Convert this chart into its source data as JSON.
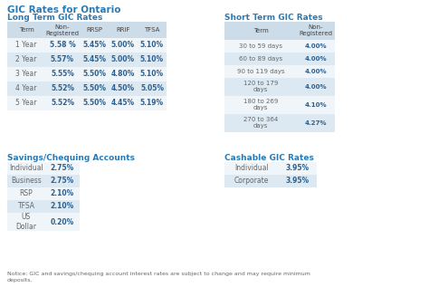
{
  "title": "GIC Rates for Ontario",
  "background_color": "#f5f5f5",
  "section_title_color": "#2a7ab5",
  "table_header_color": "#ccdce9",
  "table_row_alt_color": "#dce9f2",
  "table_row_color": "#f0f5f9",
  "table_value_color": "#2a6090",
  "table_text_color": "#666666",
  "notice_text": "Notice: GIC and savings/chequing account interest rates are subject to change and may require minimum\ndeposits.",
  "long_term_title": "Long Term GIC Rates",
  "long_term_headers": [
    "Term",
    "Non-\nRegistered",
    "RRSP",
    "RRIF",
    "TFSA"
  ],
  "long_term_data": [
    [
      "1 Year",
      "5.58 %",
      "5.45%",
      "5.00%",
      "5.10%"
    ],
    [
      "2 Year",
      "5.57%",
      "5.45%",
      "5.00%",
      "5.10%"
    ],
    [
      "3 Year",
      "5.55%",
      "5.50%",
      "4.80%",
      "5.10%"
    ],
    [
      "4 Year",
      "5.52%",
      "5.50%",
      "4.50%",
      "5.05%"
    ],
    [
      "5 Year",
      "5.52%",
      "5.50%",
      "4.45%",
      "5.19%"
    ]
  ],
  "short_term_title": "Short Term GIC Rates",
  "short_term_headers": [
    "Term",
    "Non-\nRegistered"
  ],
  "short_term_data": [
    [
      "30 to 59 days",
      "4.00%"
    ],
    [
      "60 to 89 days",
      "4.00%"
    ],
    [
      "90 to 119 days",
      "4.00%"
    ],
    [
      "120 to 179\ndays",
      "4.00%"
    ],
    [
      "180 to 269\ndays",
      "4.10%"
    ],
    [
      "270 to 364\ndays",
      "4.27%"
    ]
  ],
  "savings_title": "Savings/Chequing Accounts",
  "savings_data": [
    [
      "Individual",
      "2.75%"
    ],
    [
      "Business",
      "2.75%"
    ],
    [
      "RSP",
      "2.10%"
    ],
    [
      "TFSA",
      "2.10%"
    ],
    [
      "US\nDollar",
      "0.20%"
    ]
  ],
  "cashable_title": "Cashable GIC Rates",
  "cashable_data": [
    [
      "Individual",
      "3.95%"
    ],
    [
      "Corporate",
      "3.95%"
    ]
  ]
}
